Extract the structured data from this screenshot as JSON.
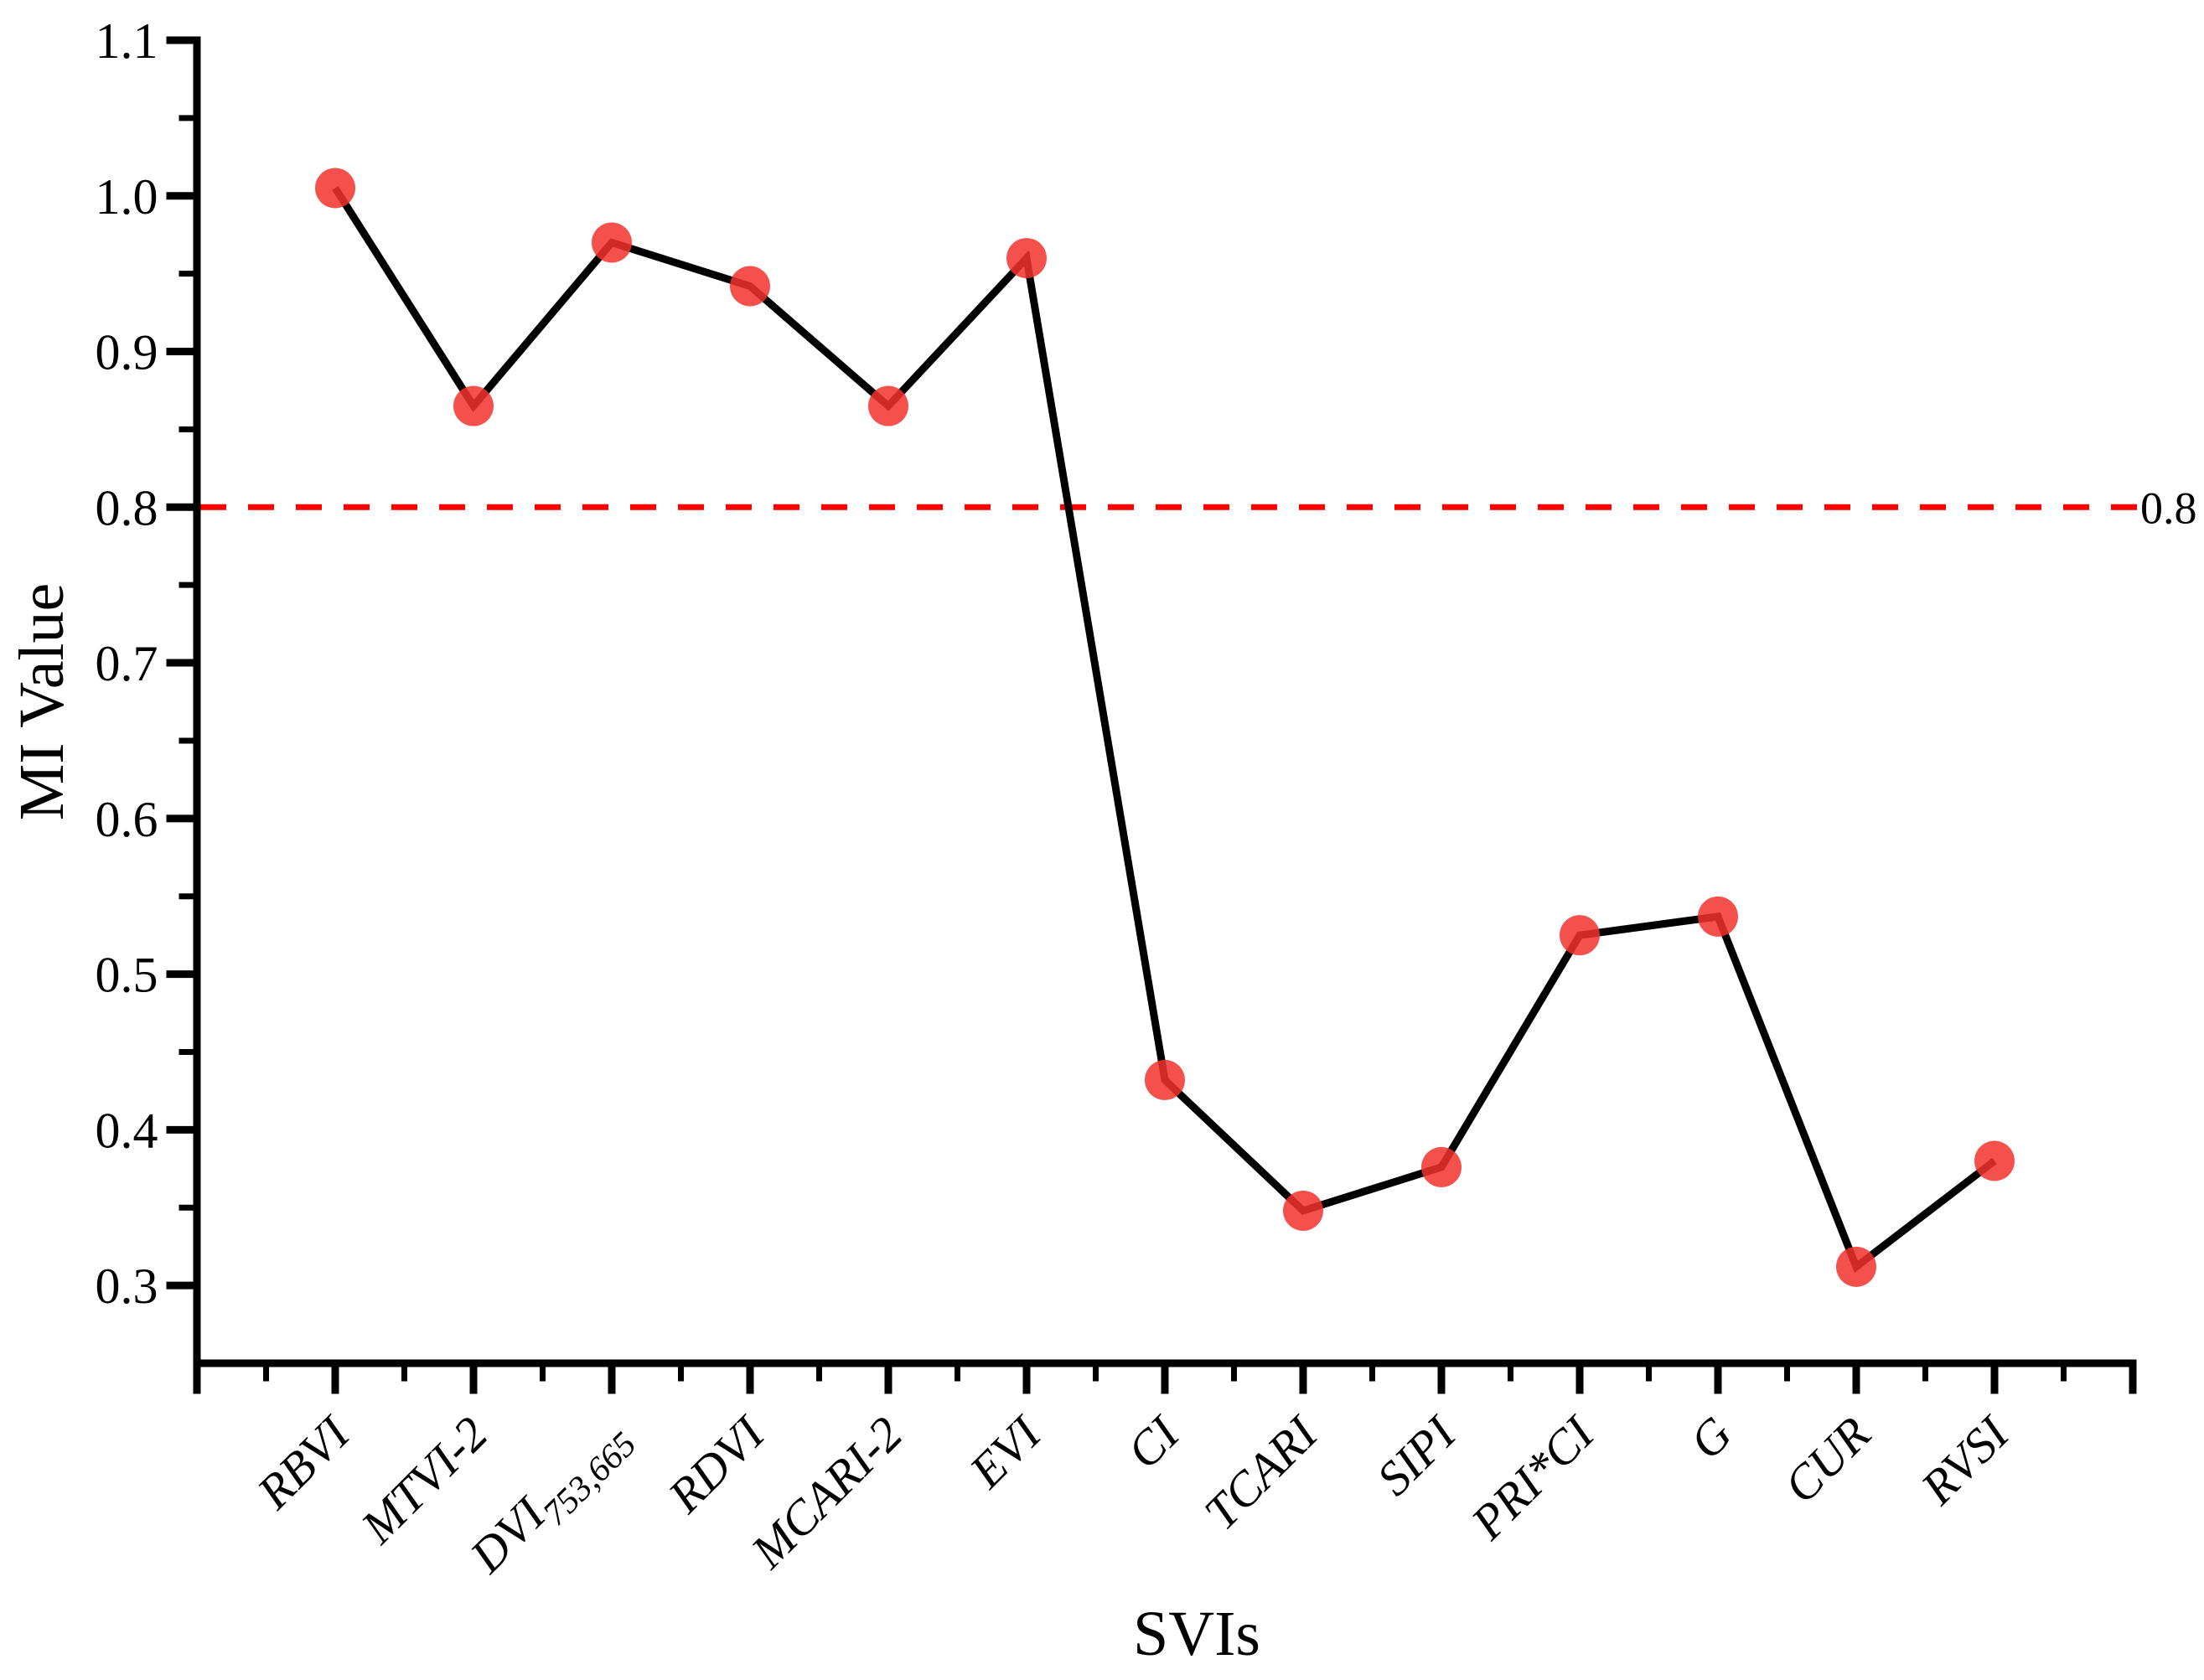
{
  "figure": {
    "background": "#ffffff",
    "ylabel": "MI Value",
    "xlabel": "SVIs"
  },
  "chart_data": {
    "type": "line",
    "title": "",
    "xlabel": "SVIs",
    "ylabel": "MI Value",
    "categories": [
      "RBVI",
      "MTVI-2",
      "DVI_{753,665}",
      "RDVI",
      "MCARI-2",
      "EVI",
      "CI",
      "TCARI",
      "SIPI",
      "PRI*CI",
      "G",
      "CUR",
      "RVSI"
    ],
    "series": [
      {
        "name": "MI Value",
        "values": [
          1.005,
          0.865,
          0.97,
          0.942,
          0.865,
          0.96,
          0.432,
          0.348,
          0.376,
          0.525,
          0.537,
          0.312,
          0.38
        ]
      }
    ],
    "ylim": [
      0.25,
      1.1
    ],
    "y_ticks": [
      0.3,
      0.4,
      0.5,
      0.6,
      0.7,
      0.8,
      0.9,
      1.0,
      1.1
    ],
    "y_tick_labels": [
      "0.3",
      "0.4",
      "0.5",
      "0.6",
      "0.7",
      "0.8",
      "0.9",
      "1.0",
      "1.1"
    ],
    "y_minor_ticks": [
      0.35,
      0.45,
      0.55,
      0.65,
      0.75,
      0.85,
      0.95,
      1.05
    ],
    "reference_line": {
      "value": 0.8,
      "label": "0.8",
      "color": "#fe0000",
      "style": "dashed"
    },
    "line_color": "#000000",
    "marker_color": "#f2332d",
    "axis_color": "#000000",
    "grid": false,
    "legend_position": "none"
  }
}
